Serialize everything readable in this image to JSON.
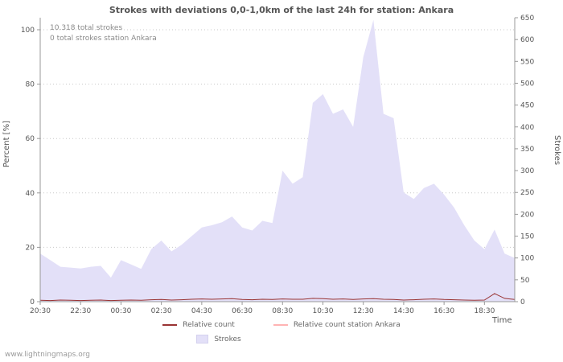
{
  "chart_data": {
    "type": "area",
    "title": "Strokes with deviations 0,0-1,0km of the last 24h for station: Ankara",
    "xlabel": "Time",
    "ylabel_left": "Percent  [%]",
    "ylabel_right": "Strokes",
    "annotations": [
      "10.318 total strokes",
      "0 total strokes station Ankara"
    ],
    "grid": "dotted-horizontal",
    "x": [
      "20:30",
      "21:00",
      "21:30",
      "22:00",
      "22:30",
      "23:00",
      "23:30",
      "00:00",
      "00:30",
      "01:00",
      "01:30",
      "02:00",
      "02:30",
      "03:00",
      "03:30",
      "04:00",
      "04:30",
      "05:00",
      "05:30",
      "06:00",
      "06:30",
      "07:00",
      "07:30",
      "08:00",
      "08:30",
      "09:00",
      "09:30",
      "10:00",
      "10:30",
      "11:00",
      "11:30",
      "12:00",
      "12:30",
      "13:00",
      "13:30",
      "14:00",
      "14:30",
      "15:00",
      "15:30",
      "16:00",
      "16:30",
      "17:00",
      "17:30",
      "18:00",
      "18:30",
      "19:00",
      "19:30",
      "20:00"
    ],
    "x_tick_labels": [
      "20:30",
      "22:30",
      "00:30",
      "02:30",
      "04:30",
      "06:30",
      "08:30",
      "10:30",
      "12:30",
      "14:30",
      "16:30",
      "18:30"
    ],
    "x_tick_every": 4,
    "left_axis": {
      "min": 0,
      "max": 100,
      "ticks": [
        0,
        20,
        40,
        60,
        80,
        100
      ]
    },
    "right_axis": {
      "min": 0,
      "max": 650,
      "ticks": [
        0,
        50,
        100,
        150,
        200,
        250,
        300,
        350,
        400,
        450,
        500,
        550,
        600,
        650
      ]
    },
    "series": [
      {
        "name": "Strokes",
        "type": "area",
        "axis": "right",
        "color": "#e3e0f8",
        "values": [
          110,
          95,
          80,
          78,
          76,
          80,
          82,
          55,
          95,
          85,
          75,
          120,
          140,
          115,
          130,
          150,
          170,
          175,
          182,
          195,
          170,
          163,
          185,
          180,
          300,
          270,
          285,
          455,
          475,
          430,
          440,
          400,
          560,
          645,
          430,
          420,
          250,
          235,
          260,
          270,
          245,
          215,
          175,
          140,
          120,
          165,
          110,
          100
        ]
      },
      {
        "name": "Relative count",
        "type": "line",
        "axis": "left",
        "color": "#993333",
        "values": [
          0.5,
          0.4,
          0.6,
          0.5,
          0.4,
          0.5,
          0.6,
          0.4,
          0.5,
          0.6,
          0.5,
          0.7,
          0.8,
          0.6,
          0.7,
          0.9,
          1.0,
          0.9,
          1.0,
          1.1,
          0.8,
          0.7,
          0.9,
          0.8,
          1.0,
          0.9,
          0.9,
          1.2,
          1.1,
          0.9,
          1.0,
          0.8,
          1.0,
          1.1,
          0.9,
          0.8,
          0.6,
          0.7,
          0.9,
          1.0,
          0.8,
          0.7,
          0.6,
          0.5,
          0.6,
          3.0,
          1.2,
          0.8
        ]
      },
      {
        "name": "Relative count station Ankara",
        "type": "line",
        "axis": "left",
        "color": "#ffb3b3",
        "values": [
          0,
          0,
          0,
          0,
          0,
          0,
          0,
          0,
          0,
          0,
          0,
          0,
          0,
          0,
          0,
          0,
          0,
          0,
          0,
          0,
          0,
          0,
          0,
          0,
          0,
          0,
          0,
          0,
          0,
          0,
          0,
          0,
          0,
          0,
          0,
          0,
          0,
          0,
          0,
          0,
          0,
          0,
          0,
          0,
          0,
          0,
          0,
          0
        ]
      }
    ]
  },
  "legend": {
    "items": [
      {
        "label": "Relative count",
        "color": "#993333",
        "swatch": "line"
      },
      {
        "label": "Relative count station Ankara",
        "color": "#ffb3b3",
        "swatch": "line"
      },
      {
        "label": "Strokes",
        "color": "#e3e0f8",
        "swatch": "area"
      }
    ]
  },
  "watermark": "www.lightningmaps.org"
}
